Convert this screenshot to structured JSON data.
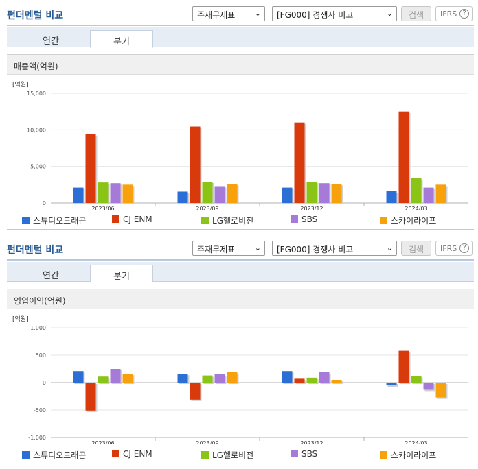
{
  "panels": [
    {
      "header": {
        "title": "펀더멘털 비교",
        "select1": "주재무제표",
        "select2": "[FG000] 경쟁사 비교",
        "search_label": "검색",
        "ifrs_label": "IFRS",
        "help_glyph": "?"
      },
      "tabs": [
        "연간",
        "분기"
      ],
      "active_tab": 1,
      "section_title": "매출액(억원)",
      "chart_data": {
        "type": "bar",
        "unit_label": "[억원]",
        "categories": [
          "2023/06",
          "2023/09",
          "2023/12",
          "2024/03"
        ],
        "ylim": [
          0,
          15000
        ],
        "yticks": [
          0,
          5000,
          10000,
          15000
        ],
        "ytick_labels": [
          "0",
          "5,000",
          "10,000",
          "15,000"
        ],
        "grid": true,
        "legend_position": "bottom",
        "series": [
          {
            "name": "스튜디오드래곤",
            "color": "#2b6fd6",
            "values": [
              2100,
              1550,
              2100,
              1600
            ]
          },
          {
            "name": "CJ ENM",
            "color": "#d83a0c",
            "values": [
              9400,
              10450,
              11000,
              12500
            ]
          },
          {
            "name": "LG헬로비전",
            "color": "#8ac416",
            "values": [
              2800,
              2900,
              2900,
              3400
            ]
          },
          {
            "name": "SBS",
            "color": "#a57ad9",
            "values": [
              2700,
              2300,
              2700,
              2100
            ]
          },
          {
            "name": "스카이라이프",
            "color": "#f7a20c",
            "values": [
              2500,
              2600,
              2600,
              2500
            ]
          }
        ]
      }
    },
    {
      "header": {
        "title": "펀더멘털 비교",
        "select1": "주재무제표",
        "select2": "[FG000] 경쟁사 비교",
        "search_label": "검색",
        "ifrs_label": "IFRS",
        "help_glyph": "?"
      },
      "tabs": [
        "연간",
        "분기"
      ],
      "active_tab": 1,
      "section_title": "영업이익(억원)",
      "chart_data": {
        "type": "bar",
        "unit_label": "[억원]",
        "categories": [
          "2023/06",
          "2023/09",
          "2023/12",
          "2024/03"
        ],
        "ylim": [
          -1000,
          1000
        ],
        "yticks": [
          -1000,
          -500,
          0,
          500,
          1000
        ],
        "ytick_labels": [
          "-1,000",
          "-500",
          "0",
          "500",
          "1,000"
        ],
        "grid": true,
        "legend_position": "bottom",
        "series": [
          {
            "name": "스튜디오드래곤",
            "color": "#2b6fd6",
            "values": [
              210,
              160,
              210,
              -50
            ]
          },
          {
            "name": "CJ ENM",
            "color": "#d83a0c",
            "values": [
              -510,
              -310,
              70,
              580
            ]
          },
          {
            "name": "LG헬로비전",
            "color": "#8ac416",
            "values": [
              110,
              130,
              90,
              120
            ]
          },
          {
            "name": "SBS",
            "color": "#a57ad9",
            "values": [
              250,
              150,
              190,
              -130
            ]
          },
          {
            "name": "스카이라이프",
            "color": "#f7a20c",
            "values": [
              160,
              190,
              50,
              -270
            ]
          }
        ]
      }
    }
  ]
}
